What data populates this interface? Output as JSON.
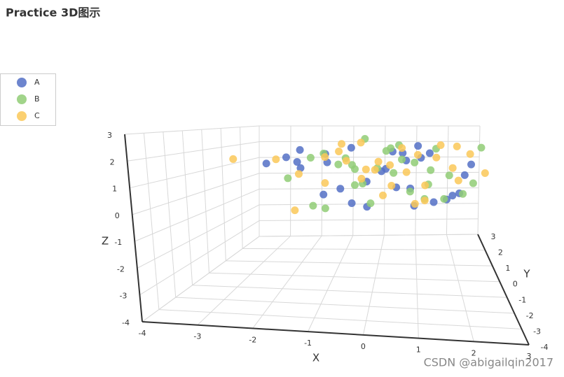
{
  "chart_data": {
    "type": "scatter3d",
    "title": "Practice 3D图示",
    "xlabel": "X",
    "ylabel": "Y",
    "zlabel": "Z",
    "xlim": [
      -4,
      3
    ],
    "ylim": [
      -4,
      3
    ],
    "zlim": [
      -4,
      3
    ],
    "xticks": [
      -4,
      -3,
      -2,
      -1,
      0,
      1,
      2,
      3
    ],
    "yticks": [
      -4,
      -3,
      -2,
      -1,
      0,
      1,
      2,
      3
    ],
    "zticks": [
      -4,
      -3,
      -2,
      -1,
      0,
      1,
      2,
      3
    ],
    "grid": true,
    "legend": "top-left",
    "series": [
      {
        "name": "A",
        "color": "#5470c6",
        "x": [
          -1.2,
          0.5,
          1.3,
          -0.4,
          2.1,
          -2.3,
          0.9,
          -0.8,
          1.7,
          0.2,
          -1.6,
          1.1,
          -0.1,
          0.7,
          -2.0,
          1.9,
          -0.6,
          0.3,
          1.4,
          -1.1,
          2.4,
          -0.3,
          0.8,
          -1.8,
          1.0,
          -0.9,
          0.1,
          1.6,
          -2.6,
          0.6
        ],
        "y": [
          0.4,
          -0.9,
          1.2,
          -1.5,
          0.3,
          0.8,
          -0.2,
          1.6,
          -1.1,
          0.6,
          -0.7,
          1.9,
          -1.3,
          0.1,
          1.0,
          -0.5,
          -1.8,
          2.0,
          0.7,
          -0.4,
          1.3,
          0.9,
          -1.6,
          -0.1,
          1.5,
          -2.1,
          0.5,
          -0.8,
          0.2,
          1.1
        ],
        "z": [
          1.5,
          0.8,
          1.9,
          0.2,
          1.1,
          1.6,
          -0.3,
          2.0,
          0.6,
          1.2,
          2.3,
          1.4,
          0.0,
          1.8,
          1.0,
          0.5,
          0.9,
          1.7,
          -0.5,
          2.1,
          1.3,
          0.4,
          1.0,
          1.6,
          2.2,
          0.7,
          1.1,
          0.3,
          1.4,
          1.9
        ]
      },
      {
        "name": "B",
        "color": "#91cc75",
        "x": [
          -0.7,
          1.2,
          0.3,
          -1.5,
          2.0,
          -0.2,
          0.9,
          -2.1,
          1.5,
          0.0,
          -1.0,
          0.6,
          1.8,
          -0.5,
          2.8,
          -1.3,
          0.4,
          1.1,
          -0.9,
          0.2,
          1.6,
          -1.9,
          0.8,
          -0.3,
          1.3,
          -1.2,
          0.5,
          2.2,
          -0.6,
          0.1
        ],
        "y": [
          1.1,
          -0.6,
          0.9,
          1.4,
          -0.3,
          -1.2,
          0.5,
          0.2,
          1.7,
          -1.7,
          0.8,
          -0.1,
          1.0,
          2.1,
          2.0,
          -0.9,
          0.3,
          -1.4,
          1.3,
          0.7,
          0.0,
          1.6,
          -0.8,
          -1.9,
          0.6,
          0.1,
          1.2,
          -0.5,
          0.9,
          -1.1
        ],
        "z": [
          1.2,
          0.9,
          2.2,
          1.7,
          0.4,
          1.0,
          1.6,
          0.7,
          2.0,
          0.3,
          1.3,
          1.9,
          0.8,
          2.4,
          2.0,
          -0.2,
          1.1,
          0.5,
          1.5,
          2.1,
          0.0,
          1.4,
          0.6,
          1.8,
          1.2,
          -0.7,
          2.3,
          1.0,
          0.2,
          1.7
        ]
      },
      {
        "name": "C",
        "color": "#fac858",
        "x": [
          -3.5,
          -0.9,
          0.4,
          1.0,
          -1.7,
          2.3,
          0.7,
          -0.2,
          1.5,
          -1.4,
          0.1,
          1.9,
          -0.6,
          0.9,
          -2.4,
          1.2,
          -1.0,
          0.3,
          2.6,
          -0.4,
          1.7,
          -1.9,
          0.6,
          -0.1,
          1.1,
          -1.2,
          2.0,
          0.2,
          -0.8,
          1.4
        ],
        "y": [
          0.5,
          0.7,
          -1.0,
          1.5,
          -0.4,
          0.9,
          1.8,
          -1.5,
          0.2,
          1.1,
          -0.7,
          -0.2,
          2.0,
          -1.8,
          0.3,
          1.3,
          -1.1,
          0.6,
          0.4,
          1.6,
          -0.9,
          0.0,
          -0.3,
          1.0,
          -1.6,
          1.9,
          1.2,
          -0.6,
          0.8,
          0.1
        ],
        "z": [
          1.5,
          2.4,
          0.9,
          1.7,
          1.1,
          2.0,
          0.6,
          1.3,
          2.6,
          0.2,
          1.9,
          1.0,
          2.2,
          0.4,
          1.6,
          0.1,
          2.1,
          1.4,
          1.2,
          0.8,
          1.8,
          -0.8,
          2.5,
          1.0,
          0.5,
          1.7,
          2.3,
          0.3,
          1.5,
          2.0
        ]
      }
    ],
    "watermark": "CSDN @abigailqin2017"
  }
}
